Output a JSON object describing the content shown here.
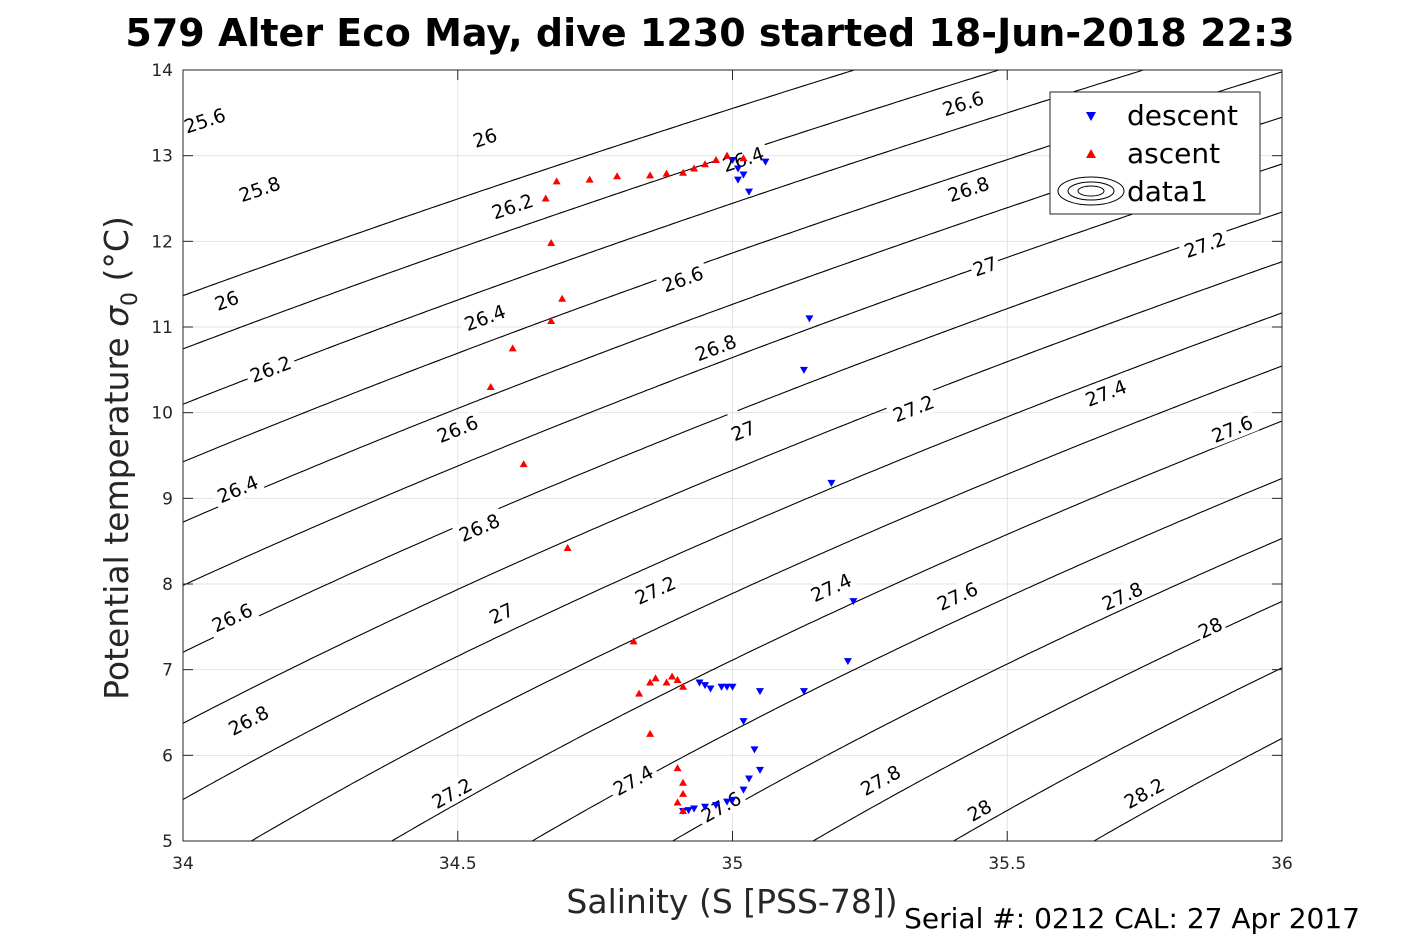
{
  "chart_data": {
    "type": "scatter",
    "title": "579 Alter Eco May, dive 1230 started 18-Jun-2018 22:3",
    "xlabel": "Salinity (S [PSS-78])",
    "ylabel": "Potential temperature σ 0 (°C)",
    "ylabel_main": "Potential temperature ",
    "ylabel_sym": "σ",
    "ylabel_sub": "0",
    "ylabel_unit": " (°C)",
    "footer": "Serial #: 0212  CAL: 27 Apr 2017",
    "xlim": [
      34,
      36
    ],
    "ylim": [
      5,
      14
    ],
    "x_ticks": [
      "34",
      "34.5",
      "35",
      "35.5",
      "36"
    ],
    "y_ticks": [
      "5",
      "6",
      "7",
      "8",
      "9",
      "10",
      "11",
      "12",
      "13",
      "14"
    ],
    "grid": true,
    "legend_position": "top-right",
    "legend": [
      "descent",
      "ascent",
      "data1"
    ],
    "colors": {
      "descent": "#0000ff",
      "ascent": "#ff0000",
      "contour": "#000000"
    },
    "series": [
      {
        "name": "descent",
        "marker": "triangle-down",
        "x": [
          35.0,
          35.01,
          35.02,
          35.01,
          35.03,
          35.06,
          35.14,
          35.13,
          35.18,
          35.22,
          35.21,
          35.13,
          35.05,
          35.02,
          34.94,
          34.95,
          34.96,
          34.98,
          34.99,
          35.0,
          35.04,
          35.05,
          35.03,
          35.02,
          35.0,
          34.99,
          34.97,
          34.95,
          34.93,
          34.92,
          34.91
        ],
        "y": [
          12.95,
          12.85,
          12.78,
          12.72,
          12.58,
          12.93,
          11.1,
          10.5,
          9.18,
          7.8,
          7.1,
          6.75,
          6.75,
          6.4,
          6.85,
          6.82,
          6.78,
          6.8,
          6.8,
          6.8,
          6.07,
          5.83,
          5.73,
          5.6,
          5.48,
          5.46,
          5.42,
          5.4,
          5.38,
          5.36,
          5.35
        ]
      },
      {
        "name": "ascent",
        "marker": "triangle-up",
        "x": [
          34.66,
          34.68,
          34.74,
          34.79,
          34.85,
          34.88,
          34.91,
          34.93,
          34.95,
          34.97,
          34.99,
          35.02,
          34.67,
          34.69,
          34.67,
          34.6,
          34.56,
          34.62,
          34.7,
          34.82,
          34.83,
          34.85,
          34.86,
          34.88,
          34.89,
          34.9,
          34.91,
          34.85,
          34.9,
          34.91,
          34.91,
          34.9,
          34.91
        ],
        "y": [
          12.5,
          12.7,
          12.72,
          12.76,
          12.77,
          12.79,
          12.8,
          12.85,
          12.9,
          12.95,
          13.0,
          12.97,
          11.98,
          11.33,
          11.07,
          10.75,
          10.3,
          9.4,
          8.42,
          7.33,
          6.72,
          6.85,
          6.9,
          6.85,
          6.92,
          6.88,
          6.8,
          6.25,
          5.85,
          5.68,
          5.55,
          5.45,
          5.35
        ]
      }
    ],
    "contour_labels": [
      {
        "label": "25.6",
        "s": 34.04,
        "t": 13.4
      },
      {
        "label": "25.8",
        "s": 34.14,
        "t": 12.6
      },
      {
        "label": "26",
        "s": 34.08,
        "t": 11.3
      },
      {
        "label": "26.2",
        "s": 34.16,
        "t": 10.5
      },
      {
        "label": "26.4",
        "s": 34.1,
        "t": 9.1
      },
      {
        "label": "26.6",
        "s": 34.09,
        "t": 7.6
      },
      {
        "label": "26.8",
        "s": 34.12,
        "t": 6.4
      },
      {
        "label": "26",
        "s": 34.55,
        "t": 13.2
      },
      {
        "label": "26.2",
        "s": 34.6,
        "t": 12.4
      },
      {
        "label": "26.4",
        "s": 34.55,
        "t": 11.1
      },
      {
        "label": "26.6",
        "s": 34.5,
        "t": 9.8
      },
      {
        "label": "26.8",
        "s": 34.54,
        "t": 8.65
      },
      {
        "label": "27",
        "s": 34.58,
        "t": 7.65
      },
      {
        "label": "27.2",
        "s": 34.49,
        "t": 5.55
      },
      {
        "label": "26.4",
        "s": 35.02,
        "t": 12.95
      },
      {
        "label": "26.6",
        "s": 34.91,
        "t": 11.55
      },
      {
        "label": "26.8",
        "s": 34.97,
        "t": 10.75
      },
      {
        "label": "27",
        "s": 35.02,
        "t": 9.78
      },
      {
        "label": "27.2",
        "s": 34.86,
        "t": 7.92
      },
      {
        "label": "27.4",
        "s": 34.82,
        "t": 5.7
      },
      {
        "label": "27.6",
        "s": 34.98,
        "t": 5.39
      },
      {
        "label": "26.6",
        "s": 35.42,
        "t": 13.6
      },
      {
        "label": "26.8",
        "s": 35.43,
        "t": 12.6
      },
      {
        "label": "27",
        "s": 35.46,
        "t": 11.7
      },
      {
        "label": "27.2",
        "s": 35.33,
        "t": 10.04
      },
      {
        "label": "27.4",
        "s": 35.18,
        "t": 7.95
      },
      {
        "label": "27.8",
        "s": 35.27,
        "t": 5.7
      },
      {
        "label": "27.2",
        "s": 35.86,
        "t": 11.95
      },
      {
        "label": "27.4",
        "s": 35.68,
        "t": 10.22
      },
      {
        "label": "27.6",
        "s": 35.41,
        "t": 7.85
      },
      {
        "label": "28",
        "s": 35.45,
        "t": 5.35
      },
      {
        "label": "27.6",
        "s": 35.91,
        "t": 9.8
      },
      {
        "label": "27.8",
        "s": 35.71,
        "t": 7.85
      },
      {
        "label": "28",
        "s": 35.87,
        "t": 7.48
      },
      {
        "label": "28.2",
        "s": 35.75,
        "t": 5.55
      }
    ]
  }
}
